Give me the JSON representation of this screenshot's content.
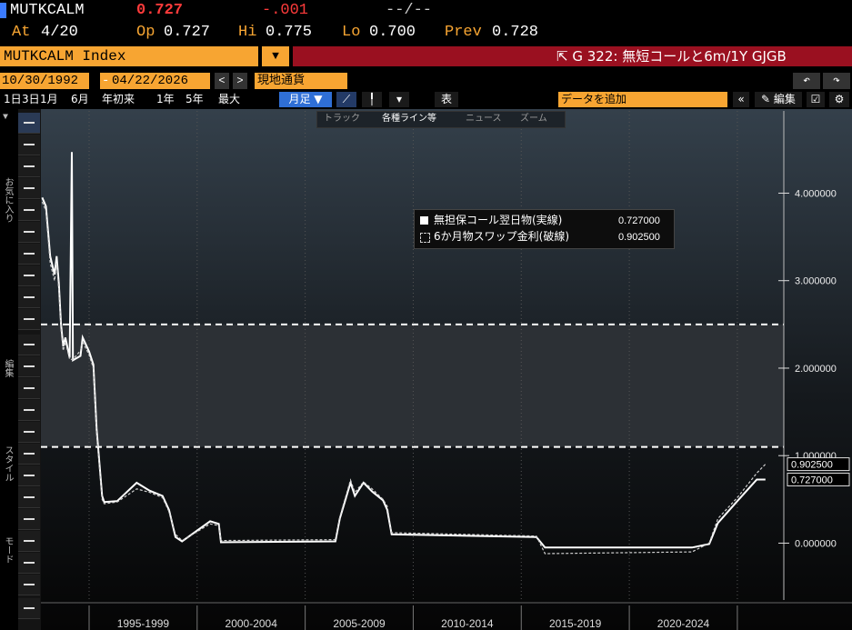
{
  "header": {
    "ticker": "MUTKCALM",
    "last": "0.727",
    "change": "-.001",
    "time": "--/--",
    "at_label": "At",
    "at": "4/20",
    "open_label": "Op",
    "open": "0.727",
    "high_label": "Hi",
    "high": "0.775",
    "low_label": "Lo",
    "low": "0.700",
    "prev_label": "Prev",
    "prev": "0.728"
  },
  "security": "MUTKCALM Index",
  "function": "G 322: 無短コールと6m/1Y GJGB",
  "date_from": "10/30/1992",
  "date_sep": "-",
  "date_to": "04/22/2026",
  "currency": "現地通貨",
  "periods": [
    "1日",
    "3日",
    "1月",
    "6月",
    "年初来",
    "1年",
    "5年",
    "最大"
  ],
  "frequency": "月足 ▼",
  "table_button": "表",
  "add_data": "データを追加",
  "edit": "編集",
  "chart_tools": [
    "トラック",
    "各種ライン等",
    "ニュース",
    "ズーム"
  ],
  "side_labels": [
    "お気に入り",
    "編集",
    "スタイル",
    "モード"
  ],
  "chart_data": {
    "type": "line",
    "x": [
      1992.83,
      1993.0,
      1993.2,
      1993.4,
      1993.5,
      1993.6,
      1993.7,
      1993.8,
      1993.9,
      1994.1,
      1994.2,
      1994.25,
      1994.6,
      1994.7,
      1995.0,
      1995.2,
      1995.35,
      1995.6,
      1995.7,
      1996.3,
      1997.2,
      1997.8,
      1998.4,
      1998.7,
      1999.0,
      1999.3,
      2000.6,
      2001.0,
      2001.1,
      2006.4,
      2006.6,
      2007.1,
      2007.3,
      2007.7,
      2008.1,
      2008.6,
      2008.8,
      2009.0,
      2015.7,
      2016.1,
      2022.9,
      2023.7,
      2024.1,
      2025.0,
      2025.9,
      2026.3
    ],
    "series": [
      {
        "name": "無担保コール翌日物(実線)",
        "color": "#ffffff",
        "dash": false,
        "last_label": "0.727000",
        "values": [
          3.95,
          3.85,
          3.28,
          3.07,
          3.28,
          2.97,
          2.5,
          2.25,
          2.35,
          2.12,
          4.47,
          2.09,
          2.14,
          2.35,
          2.19,
          2.04,
          1.3,
          0.54,
          0.47,
          0.48,
          0.69,
          0.6,
          0.54,
          0.38,
          0.07,
          0.02,
          0.25,
          0.22,
          0.01,
          0.02,
          0.28,
          0.69,
          0.54,
          0.69,
          0.59,
          0.49,
          0.38,
          0.1,
          0.07,
          -0.05,
          -0.05,
          -0.01,
          0.23,
          0.48,
          0.727,
          0.727
        ]
      },
      {
        "name": "6か月物スワップ金利(破線)",
        "color": "#cfcfcf",
        "dash": true,
        "last_label": "0.902500",
        "values": [
          3.9,
          3.8,
          3.2,
          3.0,
          3.2,
          2.9,
          2.45,
          2.2,
          2.3,
          2.1,
          2.1,
          2.1,
          2.2,
          2.3,
          2.15,
          2.0,
          1.25,
          0.5,
          0.45,
          0.47,
          0.62,
          0.58,
          0.52,
          0.36,
          0.1,
          0.03,
          0.22,
          0.2,
          0.03,
          0.04,
          0.3,
          0.72,
          0.58,
          0.7,
          0.62,
          0.5,
          0.42,
          0.12,
          0.08,
          -0.12,
          -0.1,
          0.0,
          0.28,
          0.52,
          0.8,
          0.9025
        ]
      }
    ],
    "xlim": [
      1992.77,
      2027.15
    ],
    "ylim": [
      -0.65,
      4.94
    ],
    "xticks": [
      {
        "value": 1997.5,
        "label": "1995-1999"
      },
      {
        "value": 2002.5,
        "label": "2000-2004"
      },
      {
        "value": 2007.5,
        "label": "2005-2009"
      },
      {
        "value": 2012.5,
        "label": "2010-2014"
      },
      {
        "value": 2017.5,
        "label": "2015-2019"
      },
      {
        "value": 2022.5,
        "label": "2020-2024"
      }
    ],
    "xgrid": [
      1995,
      2000,
      2005,
      2010,
      2015,
      2020,
      2025
    ],
    "yticks": [
      {
        "value": 0,
        "label": "0.000000"
      },
      {
        "value": 1,
        "label": "1.000000"
      },
      {
        "value": 2,
        "label": "2.000000"
      },
      {
        "value": 3,
        "label": "3.000000"
      },
      {
        "value": 4,
        "label": "4.000000"
      }
    ],
    "reference_lines": [
      2.5,
      1.1
    ],
    "band_color": "#2c3035",
    "legend": "top-center"
  }
}
